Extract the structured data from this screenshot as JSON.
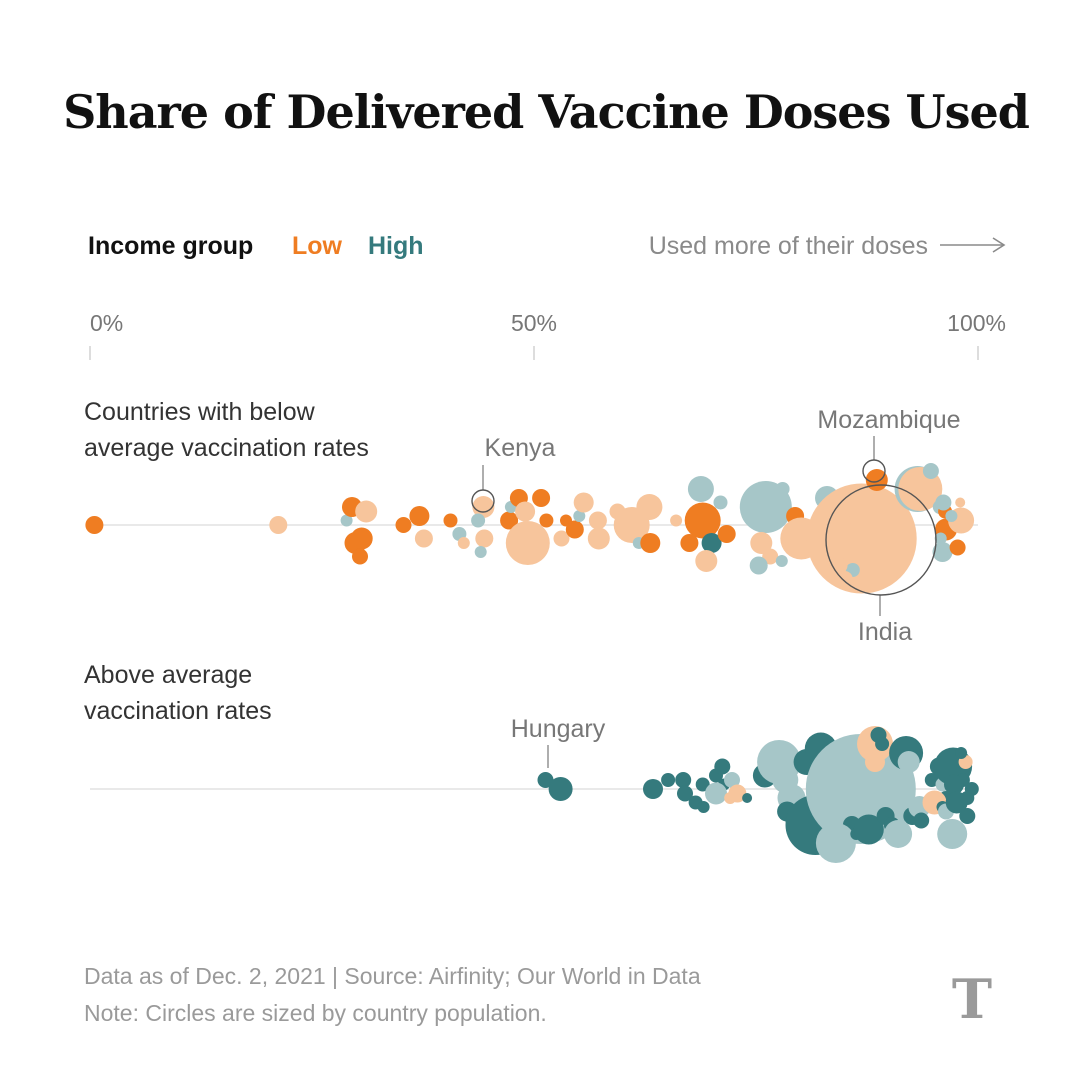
{
  "chart_data": {
    "type": "scatter",
    "title": "Share of Delivered Vaccine Doses Used",
    "legend": {
      "title": "Income group",
      "low_label": "Low",
      "high_label": "High"
    },
    "direction_hint": "Used more of their doses",
    "x_axis": {
      "ticks": [
        "0%",
        "50%",
        "100%"
      ],
      "range": [
        0,
        100
      ]
    },
    "colors": {
      "low_dark": "#ef7d22",
      "low_light": "#f7c59c",
      "high_dark": "#357a7d",
      "high_light": "#a6c6c8",
      "axis": "#e2e2e2"
    },
    "groups": [
      {
        "label_lines": [
          "Countries with below",
          "average vaccination rates"
        ],
        "annotations": [
          "Kenya",
          "Mozambique",
          "India"
        ],
        "points": [
          {
            "x": 0.5,
            "y": 0,
            "r": 9,
            "c": "LD"
          },
          {
            "x": 21.2,
            "y": 0,
            "r": 9,
            "c": "LL"
          },
          {
            "x": 28.9,
            "y": -0.5,
            "r": 6,
            "c": "HL"
          },
          {
            "x": 29.9,
            "y": 2,
            "r": 11,
            "c": "LD"
          },
          {
            "x": 29.5,
            "y": -2,
            "r": 10,
            "c": "LD"
          },
          {
            "x": 31.1,
            "y": -1.5,
            "r": 11,
            "c": "LL"
          },
          {
            "x": 30.6,
            "y": 1.5,
            "r": 11,
            "c": "LD"
          },
          {
            "x": 30.4,
            "y": 3.5,
            "r": 8,
            "c": "LD"
          },
          {
            "x": 35.3,
            "y": 0,
            "r": 8,
            "c": "LD"
          },
          {
            "x": 37.1,
            "y": -1,
            "r": 10,
            "c": "LD"
          },
          {
            "x": 37.6,
            "y": 1.5,
            "r": 9,
            "c": "LL"
          },
          {
            "x": 40.6,
            "y": -0.5,
            "r": 7,
            "c": "LD"
          },
          {
            "x": 41.6,
            "y": 1,
            "r": 7,
            "c": "HL"
          },
          {
            "x": 42.1,
            "y": 2,
            "r": 6,
            "c": "LL"
          },
          {
            "x": 44.3,
            "y": -2,
            "r": 11,
            "c": "LL"
          },
          {
            "x": 43.7,
            "y": -0.5,
            "r": 7,
            "c": "HL"
          },
          {
            "x": 44.4,
            "y": 1.5,
            "r": 9,
            "c": "LL"
          },
          {
            "x": 44.0,
            "y": 3,
            "r": 6,
            "c": "HL"
          },
          {
            "x": 47.2,
            "y": -0.5,
            "r": 9,
            "c": "LD"
          },
          {
            "x": 47.4,
            "y": -2,
            "r": 6,
            "c": "HL"
          },
          {
            "x": 48.3,
            "y": -3,
            "r": 9,
            "c": "LD"
          },
          {
            "x": 49.0,
            "y": -1.5,
            "r": 10,
            "c": "LL"
          },
          {
            "x": 49.3,
            "y": 2,
            "r": 22,
            "c": "LL"
          },
          {
            "x": 50.8,
            "y": -3,
            "r": 9,
            "c": "LD"
          },
          {
            "x": 51.4,
            "y": -0.5,
            "r": 7,
            "c": "LD"
          },
          {
            "x": 53.1,
            "y": 1.5,
            "r": 8,
            "c": "LL"
          },
          {
            "x": 53.6,
            "y": -0.5,
            "r": 6,
            "c": "LD"
          },
          {
            "x": 54.6,
            "y": 0.5,
            "r": 9,
            "c": "LD"
          },
          {
            "x": 55.1,
            "y": -1,
            "r": 6,
            "c": "HL"
          },
          {
            "x": 55.6,
            "y": -2.5,
            "r": 10,
            "c": "LL"
          },
          {
            "x": 57.2,
            "y": -0.5,
            "r": 9,
            "c": "LL"
          },
          {
            "x": 57.3,
            "y": 1.5,
            "r": 11,
            "c": "LL"
          },
          {
            "x": 59.4,
            "y": -1.5,
            "r": 8,
            "c": "LL"
          },
          {
            "x": 61.0,
            "y": 0,
            "r": 18,
            "c": "LL"
          },
          {
            "x": 61.8,
            "y": 2,
            "r": 6,
            "c": "HL"
          },
          {
            "x": 63.0,
            "y": -2,
            "r": 13,
            "c": "LL"
          },
          {
            "x": 63.1,
            "y": 2,
            "r": 10,
            "c": "LD"
          },
          {
            "x": 66.0,
            "y": -0.5,
            "r": 6,
            "c": "LL"
          },
          {
            "x": 67.5,
            "y": 2,
            "r": 9,
            "c": "LD"
          },
          {
            "x": 68.8,
            "y": -4,
            "r": 13,
            "c": "HL"
          },
          {
            "x": 69.0,
            "y": -0.5,
            "r": 18,
            "c": "LD"
          },
          {
            "x": 70.0,
            "y": 2,
            "r": 10,
            "c": "HD"
          },
          {
            "x": 69.4,
            "y": 4,
            "r": 11,
            "c": "LL"
          },
          {
            "x": 71.0,
            "y": -2.5,
            "r": 7,
            "c": "HL"
          },
          {
            "x": 71.7,
            "y": 1,
            "r": 9,
            "c": "LD"
          },
          {
            "x": 76.1,
            "y": -2,
            "r": 26,
            "c": "HL"
          },
          {
            "x": 75.6,
            "y": 2,
            "r": 11,
            "c": "LL"
          },
          {
            "x": 76.6,
            "y": 3.5,
            "r": 8,
            "c": "LL"
          },
          {
            "x": 75.3,
            "y": 4.5,
            "r": 9,
            "c": "HL"
          },
          {
            "x": 78.0,
            "y": -4,
            "r": 7,
            "c": "HL"
          },
          {
            "x": 79.4,
            "y": -1,
            "r": 9,
            "c": "LD"
          },
          {
            "x": 80.1,
            "y": 1.5,
            "r": 21,
            "c": "LL"
          },
          {
            "x": 77.9,
            "y": 4,
            "r": 6,
            "c": "HL"
          },
          {
            "x": 83.0,
            "y": -3,
            "r": 12,
            "c": "HL"
          },
          {
            "x": 85.0,
            "y": -2.5,
            "r": 7,
            "c": "HL"
          },
          {
            "x": 86.9,
            "y": 1.5,
            "r": 55,
            "c": "LL"
          },
          {
            "x": 84.9,
            "y": -0.5,
            "r": 7,
            "c": "LL"
          },
          {
            "x": 85.9,
            "y": 5,
            "r": 7,
            "c": "HL"
          },
          {
            "x": 84.4,
            "y": 4.5,
            "r": 8,
            "c": "LL"
          },
          {
            "x": 85.0,
            "y": 6,
            "r": 8,
            "c": "LL"
          },
          {
            "x": 88.6,
            "y": -5,
            "r": 11,
            "c": "LD"
          },
          {
            "x": 93.2,
            "y": -4,
            "r": 23,
            "c": "HL"
          },
          {
            "x": 93.5,
            "y": -4,
            "r": 22,
            "c": "LL"
          },
          {
            "x": 94.7,
            "y": -6,
            "r": 8,
            "c": "HL"
          },
          {
            "x": 95.7,
            "y": -2,
            "r": 7,
            "c": "HL"
          },
          {
            "x": 96.3,
            "y": -1.5,
            "r": 7,
            "c": "LD"
          },
          {
            "x": 96.8,
            "y": 0,
            "r": 6,
            "c": "LL"
          },
          {
            "x": 96.1,
            "y": -2.5,
            "r": 8,
            "c": "HL"
          },
          {
            "x": 96.4,
            "y": 0.5,
            "r": 11,
            "c": "LD"
          },
          {
            "x": 95.8,
            "y": 1.5,
            "r": 6,
            "c": "HL"
          },
          {
            "x": 96.0,
            "y": 3,
            "r": 10,
            "c": "HL"
          },
          {
            "x": 98.1,
            "y": -0.5,
            "r": 13,
            "c": "LL"
          },
          {
            "x": 97.7,
            "y": 2.5,
            "r": 8,
            "c": "LD"
          },
          {
            "x": 97.0,
            "y": -1,
            "r": 6,
            "c": "HL"
          },
          {
            "x": 98.0,
            "y": -2.5,
            "r": 5,
            "c": "LL"
          }
        ]
      },
      {
        "label_lines": [
          "Above average",
          "vaccination rates"
        ],
        "annotations": [
          "Hungary"
        ],
        "points": [
          {
            "x": 51.3,
            "y": -1,
            "r": 8,
            "c": "HD"
          },
          {
            "x": 53.0,
            "y": 0,
            "r": 12,
            "c": "HD"
          },
          {
            "x": 63.4,
            "y": 0,
            "r": 10,
            "c": "HD"
          },
          {
            "x": 65.1,
            "y": -1,
            "r": 7,
            "c": "HD"
          },
          {
            "x": 66.8,
            "y": -1,
            "r": 8,
            "c": "HD"
          },
          {
            "x": 67.0,
            "y": 0.5,
            "r": 8,
            "c": "HD"
          },
          {
            "x": 68.2,
            "y": 1.5,
            "r": 7,
            "c": "HD"
          },
          {
            "x": 69.0,
            "y": -0.5,
            "r": 7,
            "c": "HD"
          },
          {
            "x": 69.1,
            "y": 2,
            "r": 6,
            "c": "HD"
          },
          {
            "x": 70.5,
            "y": -1.5,
            "r": 7,
            "c": "HD"
          },
          {
            "x": 71.2,
            "y": -2.5,
            "r": 8,
            "c": "HD"
          },
          {
            "x": 71.4,
            "y": -0.5,
            "r": 6,
            "c": "HD"
          },
          {
            "x": 70.5,
            "y": 0.5,
            "r": 11,
            "c": "HL"
          },
          {
            "x": 72.3,
            "y": -1,
            "r": 8,
            "c": "HL"
          },
          {
            "x": 72.9,
            "y": 0.5,
            "r": 9,
            "c": "LL"
          },
          {
            "x": 72.1,
            "y": 1,
            "r": 6,
            "c": "LL"
          },
          {
            "x": 74.0,
            "y": 1,
            "r": 5,
            "c": "HD"
          },
          {
            "x": 76.0,
            "y": -1.5,
            "r": 12,
            "c": "HD"
          },
          {
            "x": 77.6,
            "y": -3,
            "r": 22,
            "c": "HL"
          },
          {
            "x": 78.3,
            "y": -1,
            "r": 13,
            "c": "HL"
          },
          {
            "x": 79.0,
            "y": 1,
            "r": 14,
            "c": "HL"
          },
          {
            "x": 78.5,
            "y": 2.5,
            "r": 10,
            "c": "HD"
          },
          {
            "x": 79.0,
            "y": 3.5,
            "r": 6,
            "c": "HD"
          },
          {
            "x": 80.7,
            "y": -3,
            "r": 13,
            "c": "HD"
          },
          {
            "x": 82.3,
            "y": -4.5,
            "r": 16,
            "c": "HD"
          },
          {
            "x": 81.7,
            "y": 4,
            "r": 30,
            "c": "HD"
          },
          {
            "x": 82.8,
            "y": -2,
            "r": 7,
            "c": "HD"
          },
          {
            "x": 84.0,
            "y": -2.5,
            "r": 8,
            "c": "HL"
          },
          {
            "x": 85.6,
            "y": -2.5,
            "r": 7,
            "c": "HD"
          },
          {
            "x": 84.2,
            "y": -1.5,
            "r": 7,
            "c": "HD"
          },
          {
            "x": 86.8,
            "y": 0,
            "r": 55,
            "c": "HL"
          },
          {
            "x": 85.8,
            "y": 4,
            "r": 9,
            "c": "HD"
          },
          {
            "x": 84.0,
            "y": 6,
            "r": 20,
            "c": "HL"
          },
          {
            "x": 86.3,
            "y": 5,
            "r": 6,
            "c": "HD"
          },
          {
            "x": 87.7,
            "y": 4.5,
            "r": 15,
            "c": "HD"
          },
          {
            "x": 88.4,
            "y": -5,
            "r": 18,
            "c": "LL"
          },
          {
            "x": 88.8,
            "y": -6,
            "r": 8,
            "c": "HD"
          },
          {
            "x": 89.2,
            "y": -5,
            "r": 7,
            "c": "HD"
          },
          {
            "x": 88.4,
            "y": -3,
            "r": 10,
            "c": "LL"
          },
          {
            "x": 91.9,
            "y": -4,
            "r": 17,
            "c": "HD"
          },
          {
            "x": 92.2,
            "y": -3,
            "r": 11,
            "c": "HL"
          },
          {
            "x": 89.6,
            "y": 3,
            "r": 9,
            "c": "HD"
          },
          {
            "x": 90.3,
            "y": 4,
            "r": 8,
            "c": "HD"
          },
          {
            "x": 91.0,
            "y": 5,
            "r": 14,
            "c": "HL"
          },
          {
            "x": 92.6,
            "y": 3,
            "r": 9,
            "c": "HD"
          },
          {
            "x": 93.4,
            "y": 2,
            "r": 11,
            "c": "HL"
          },
          {
            "x": 93.6,
            "y": 3.5,
            "r": 8,
            "c": "HD"
          },
          {
            "x": 94.8,
            "y": -1,
            "r": 7,
            "c": "HD"
          },
          {
            "x": 95.6,
            "y": -2.5,
            "r": 9,
            "c": "HD"
          },
          {
            "x": 96.6,
            "y": -1,
            "r": 7,
            "c": "HD"
          },
          {
            "x": 96.0,
            "y": -0.5,
            "r": 7,
            "c": "HL"
          },
          {
            "x": 96.4,
            "y": 1,
            "r": 7,
            "c": "HD"
          },
          {
            "x": 95.1,
            "y": 1.5,
            "r": 12,
            "c": "LL"
          },
          {
            "x": 96.0,
            "y": 2,
            "r": 6,
            "c": "HD"
          },
          {
            "x": 96.4,
            "y": 2.5,
            "r": 8,
            "c": "HL"
          },
          {
            "x": 97.2,
            "y": -2.5,
            "r": 19,
            "c": "HD"
          },
          {
            "x": 98.3,
            "y": -1,
            "r": 7,
            "c": "HD"
          },
          {
            "x": 98.6,
            "y": -3,
            "r": 7,
            "c": "LL"
          },
          {
            "x": 98.1,
            "y": -4,
            "r": 6,
            "c": "HD"
          },
          {
            "x": 97.3,
            "y": -0.5,
            "r": 10,
            "c": "HD"
          },
          {
            "x": 97.6,
            "y": 1.5,
            "r": 11,
            "c": "HD"
          },
          {
            "x": 98.8,
            "y": 1,
            "r": 7,
            "c": "HD"
          },
          {
            "x": 99.3,
            "y": 0,
            "r": 7,
            "c": "HD"
          },
          {
            "x": 98.8,
            "y": 3,
            "r": 8,
            "c": "HD"
          },
          {
            "x": 97.1,
            "y": 5,
            "r": 15,
            "c": "HL"
          }
        ]
      }
    ]
  },
  "footer": {
    "line1": "Data as of Dec. 2, 2021  |  Source: Airfinity; Our World in Data",
    "line2": "Note: Circles are sized by country population."
  },
  "logo": {
    "glyph": "T"
  }
}
